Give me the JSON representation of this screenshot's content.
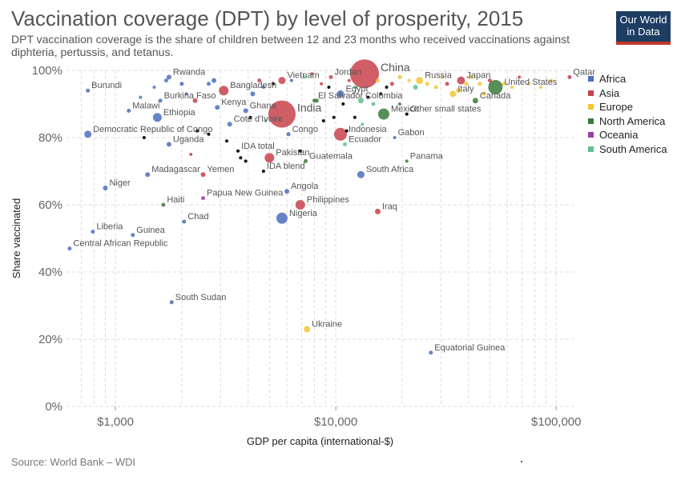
{
  "title": "Vaccination coverage (DPT) by level of prosperity, 2015",
  "subtitle": "DPT vaccination coverage is the share of children between 12 and 23 months who received vaccinations against diphteria, pertussis, and tetanus.",
  "logo": {
    "line1": "Our World",
    "line2": "in Data"
  },
  "source": "Source: World Bank – WDI",
  "colors": {
    "Africa": "#4c6fbf",
    "Asia": "#c8424b",
    "Europe": "#f4c637",
    "North America": "#3b7a3b",
    "Oceania": "#9b3fa6",
    "South America": "#5cc28f",
    "Aggregate": "#111111"
  },
  "chart_data": {
    "type": "scatter",
    "title": "Vaccination coverage (DPT) by level of prosperity, 2015",
    "xlabel": "GDP per capita (international-$)",
    "ylabel": "Share vaccinated",
    "xscale": "log",
    "xlim": [
      600,
      120000
    ],
    "ylim": [
      0,
      100
    ],
    "xticks": [
      1000,
      10000,
      100000
    ],
    "xtick_labels": [
      "$1,000",
      "$10,000",
      "$100,000"
    ],
    "yticks": [
      0,
      20,
      40,
      60,
      80,
      100
    ],
    "ytick_labels": [
      "0%",
      "20%",
      "40%",
      "60%",
      "80%",
      "100%"
    ],
    "grid": true,
    "legend_position": "right",
    "legend": [
      "Africa",
      "Asia",
      "Europe",
      "North America",
      "Oceania",
      "South America"
    ],
    "points": [
      {
        "label": "Burundi",
        "x": 750,
        "y": 94,
        "g": "Africa",
        "s": 2.5
      },
      {
        "label": "Rwanda",
        "x": 1750,
        "y": 98,
        "g": "Africa",
        "s": 3
      },
      {
        "label": "Bangladesh",
        "x": 3100,
        "y": 94,
        "g": "Asia",
        "s": 6
      },
      {
        "label": "Vietnam",
        "x": 5700,
        "y": 97,
        "g": "Asia",
        "s": 4.5
      },
      {
        "label": "Jordan",
        "x": 9500,
        "y": 98,
        "g": "Asia",
        "s": 2.5
      },
      {
        "label": "Egypt",
        "x": 10500,
        "y": 93,
        "g": "Africa",
        "s": 4.5
      },
      {
        "label": "China",
        "x": 13500,
        "y": 99,
        "g": "Asia",
        "s": 18
      },
      {
        "label": "Russia",
        "x": 24000,
        "y": 97,
        "g": "Europe",
        "s": 4.5
      },
      {
        "label": "Japan",
        "x": 37000,
        "y": 97,
        "g": "Asia",
        "s": 5
      },
      {
        "label": "United States",
        "x": 53000,
        "y": 95,
        "g": "North America",
        "s": 9
      },
      {
        "label": "Qatar",
        "x": 115000,
        "y": 98,
        "g": "Asia",
        "s": 2.5
      },
      {
        "label": "Italy",
        "x": 34000,
        "y": 93,
        "g": "Europe",
        "s": 4
      },
      {
        "label": "Canada",
        "x": 43000,
        "y": 91,
        "g": "North America",
        "s": 3.5
      },
      {
        "label": "Burkina Faso",
        "x": 1600,
        "y": 91,
        "g": "Africa",
        "s": 2.5
      },
      {
        "label": "Kenya",
        "x": 2900,
        "y": 89,
        "g": "Africa",
        "s": 3
      },
      {
        "label": "Ghana",
        "x": 3900,
        "y": 88,
        "g": "Africa",
        "s": 3
      },
      {
        "label": "India",
        "x": 5700,
        "y": 87,
        "g": "Asia",
        "s": 17
      },
      {
        "label": "El Salvador",
        "x": 8000,
        "y": 91,
        "g": "North America",
        "s": 2.5
      },
      {
        "label": "Colombia",
        "x": 13000,
        "y": 91,
        "g": "South America",
        "s": 3.5
      },
      {
        "label": "Mexico",
        "x": 16500,
        "y": 87,
        "g": "North America",
        "s": 7
      },
      {
        "label": "Other small states",
        "x": 21000,
        "y": 87,
        "g": "Aggregate",
        "s": 2
      },
      {
        "label": "Malawi",
        "x": 1150,
        "y": 88,
        "g": "Africa",
        "s": 2.5
      },
      {
        "label": "Ethiopia",
        "x": 1550,
        "y": 86,
        "g": "Africa",
        "s": 5.5
      },
      {
        "label": "Cote d'Ivoire",
        "x": 3300,
        "y": 84,
        "g": "Africa",
        "s": 3
      },
      {
        "label": "Indonesia",
        "x": 10500,
        "y": 81,
        "g": "Asia",
        "s": 8
      },
      {
        "label": "Democratic Republic of Congo",
        "x": 750,
        "y": 81,
        "g": "Africa",
        "s": 4.5
      },
      {
        "label": "Uganda",
        "x": 1750,
        "y": 78,
        "g": "Africa",
        "s": 3
      },
      {
        "label": "Congo",
        "x": 6100,
        "y": 81,
        "g": "Africa",
        "s": 2.5
      },
      {
        "label": "Ecuador",
        "x": 11000,
        "y": 78,
        "g": "South America",
        "s": 2.5
      },
      {
        "label": "Gabon",
        "x": 18500,
        "y": 80,
        "g": "Africa",
        "s": 2
      },
      {
        "label": "IDA total",
        "x": 3600,
        "y": 76,
        "g": "Aggregate",
        "s": 2
      },
      {
        "label": "Pakistan",
        "x": 5000,
        "y": 74,
        "g": "Asia",
        "s": 6
      },
      {
        "label": "Guatemala",
        "x": 7300,
        "y": 73,
        "g": "North America",
        "s": 2.5
      },
      {
        "label": "Panama",
        "x": 21000,
        "y": 73,
        "g": "North America",
        "s": 2
      },
      {
        "label": "IDA blend",
        "x": 4700,
        "y": 70,
        "g": "Aggregate",
        "s": 2
      },
      {
        "label": "Madagascar",
        "x": 1400,
        "y": 69,
        "g": "Africa",
        "s": 3
      },
      {
        "label": "Yemen",
        "x": 2500,
        "y": 69,
        "g": "Asia",
        "s": 3
      },
      {
        "label": "South Africa",
        "x": 13000,
        "y": 69,
        "g": "Africa",
        "s": 4.5
      },
      {
        "label": "Niger",
        "x": 900,
        "y": 65,
        "g": "Africa",
        "s": 3
      },
      {
        "label": "Angola",
        "x": 6000,
        "y": 64,
        "g": "Africa",
        "s": 3
      },
      {
        "label": "Papua New Guinea",
        "x": 2500,
        "y": 62,
        "g": "Oceania",
        "s": 2.5
      },
      {
        "label": "Haiti",
        "x": 1650,
        "y": 60,
        "g": "North America",
        "s": 2.5
      },
      {
        "label": "Philippines",
        "x": 6900,
        "y": 60,
        "g": "Asia",
        "s": 6
      },
      {
        "label": "Nigeria",
        "x": 5700,
        "y": 56,
        "g": "Africa",
        "s": 7
      },
      {
        "label": "Iraq",
        "x": 15500,
        "y": 58,
        "g": "Asia",
        "s": 3.5
      },
      {
        "label": "Chad",
        "x": 2050,
        "y": 55,
        "g": "Africa",
        "s": 2.5
      },
      {
        "label": "Liberia",
        "x": 790,
        "y": 52,
        "g": "Africa",
        "s": 2.5
      },
      {
        "label": "Guinea",
        "x": 1200,
        "y": 51,
        "g": "Africa",
        "s": 2.5
      },
      {
        "label": "Central African Republic",
        "x": 620,
        "y": 47,
        "g": "Africa",
        "s": 2.5
      },
      {
        "label": "South Sudan",
        "x": 1800,
        "y": 31,
        "g": "Africa",
        "s": 2.5
      },
      {
        "label": "Ukraine",
        "x": 7400,
        "y": 23,
        "g": "Europe",
        "s": 4
      },
      {
        "label": "Equatorial Guinea",
        "x": 27000,
        "y": 16,
        "g": "Africa",
        "s": 2.5
      },
      {
        "label": "",
        "x": 1300,
        "y": 92,
        "g": "Africa",
        "s": 2
      },
      {
        "label": "",
        "x": 1500,
        "y": 95,
        "g": "Africa",
        "s": 2
      },
      {
        "label": "",
        "x": 1700,
        "y": 97,
        "g": "Africa",
        "s": 2.5
      },
      {
        "label": "",
        "x": 2000,
        "y": 96,
        "g": "Africa",
        "s": 2.5
      },
      {
        "label": "",
        "x": 2300,
        "y": 91,
        "g": "Asia",
        "s": 3
      },
      {
        "label": "",
        "x": 2100,
        "y": 93,
        "g": "Africa",
        "s": 2
      },
      {
        "label": "",
        "x": 2650,
        "y": 96,
        "g": "Africa",
        "s": 2.5
      },
      {
        "label": "",
        "x": 2800,
        "y": 97,
        "g": "Africa",
        "s": 3
      },
      {
        "label": "",
        "x": 4200,
        "y": 93,
        "g": "Africa",
        "s": 3
      },
      {
        "label": "",
        "x": 4500,
        "y": 97,
        "g": "Asia",
        "s": 2.5
      },
      {
        "label": "",
        "x": 4700,
        "y": 95,
        "g": "Africa",
        "s": 2
      },
      {
        "label": "",
        "x": 5200,
        "y": 96,
        "g": "Aggregate",
        "s": 2
      },
      {
        "label": "",
        "x": 6300,
        "y": 97,
        "g": "Africa",
        "s": 2
      },
      {
        "label": "",
        "x": 7200,
        "y": 98,
        "g": "South America",
        "s": 2
      },
      {
        "label": "",
        "x": 7800,
        "y": 99,
        "g": "Asia",
        "s": 2
      },
      {
        "label": "",
        "x": 8600,
        "y": 96,
        "g": "Asia",
        "s": 2
      },
      {
        "label": "",
        "x": 9300,
        "y": 95,
        "g": "Aggregate",
        "s": 2
      },
      {
        "label": "",
        "x": 11500,
        "y": 97,
        "g": "Asia",
        "s": 2
      },
      {
        "label": "",
        "x": 12300,
        "y": 95,
        "g": "South America",
        "s": 2.5
      },
      {
        "label": "",
        "x": 15500,
        "y": 97,
        "g": "Europe",
        "s": 2.5
      },
      {
        "label": "",
        "x": 17000,
        "y": 95,
        "g": "Aggregate",
        "s": 2
      },
      {
        "label": "",
        "x": 18000,
        "y": 96,
        "g": "Asia",
        "s": 2.5
      },
      {
        "label": "",
        "x": 19500,
        "y": 98,
        "g": "Europe",
        "s": 2.5
      },
      {
        "label": "",
        "x": 21500,
        "y": 97,
        "g": "Europe",
        "s": 2
      },
      {
        "label": "",
        "x": 23000,
        "y": 95,
        "g": "South America",
        "s": 3
      },
      {
        "label": "",
        "x": 26000,
        "y": 96,
        "g": "Europe",
        "s": 2.5
      },
      {
        "label": "",
        "x": 28500,
        "y": 95,
        "g": "Europe",
        "s": 2.5
      },
      {
        "label": "",
        "x": 30500,
        "y": 98,
        "g": "Europe",
        "s": 2
      },
      {
        "label": "",
        "x": 32000,
        "y": 96,
        "g": "Asia",
        "s": 2.5
      },
      {
        "label": "",
        "x": 36000,
        "y": 94,
        "g": "Europe",
        "s": 3
      },
      {
        "label": "",
        "x": 39000,
        "y": 96,
        "g": "Europe",
        "s": 2.5
      },
      {
        "label": "",
        "x": 41000,
        "y": 98,
        "g": "Europe",
        "s": 2.5
      },
      {
        "label": "",
        "x": 45000,
        "y": 96,
        "g": "Europe",
        "s": 2.5
      },
      {
        "label": "",
        "x": 47000,
        "y": 93,
        "g": "Europe",
        "s": 2.5
      },
      {
        "label": "",
        "x": 50000,
        "y": 97,
        "g": "Asia",
        "s": 2.5
      },
      {
        "label": "",
        "x": 58000,
        "y": 96,
        "g": "Europe",
        "s": 2.5
      },
      {
        "label": "",
        "x": 63000,
        "y": 95,
        "g": "Europe",
        "s": 2
      },
      {
        "label": "",
        "x": 68000,
        "y": 98,
        "g": "Asia",
        "s": 2
      },
      {
        "label": "",
        "x": 75000,
        "y": 96,
        "g": "Europe",
        "s": 2
      },
      {
        "label": "",
        "x": 85000,
        "y": 95,
        "g": "Europe",
        "s": 2
      },
      {
        "label": "",
        "x": 95000,
        "y": 97,
        "g": "Europe",
        "s": 2
      },
      {
        "label": "",
        "x": 16000,
        "y": 93,
        "g": "Aggregate",
        "s": 2
      },
      {
        "label": "",
        "x": 14000,
        "y": 92,
        "g": "Aggregate",
        "s": 2
      },
      {
        "label": "",
        "x": 10800,
        "y": 90,
        "g": "Aggregate",
        "s": 2
      },
      {
        "label": "",
        "x": 9800,
        "y": 86,
        "g": "Aggregate",
        "s": 2
      },
      {
        "label": "",
        "x": 8800,
        "y": 85,
        "g": "Aggregate",
        "s": 2
      },
      {
        "label": "",
        "x": 12200,
        "y": 86,
        "g": "Aggregate",
        "s": 2
      },
      {
        "label": "",
        "x": 2650,
        "y": 81,
        "g": "Aggregate",
        "s": 2
      },
      {
        "label": "",
        "x": 3200,
        "y": 79,
        "g": "Aggregate",
        "s": 2
      },
      {
        "label": "",
        "x": 3700,
        "y": 74,
        "g": "Aggregate",
        "s": 2
      },
      {
        "label": "",
        "x": 3900,
        "y": 73,
        "g": "Aggregate",
        "s": 2
      },
      {
        "label": "",
        "x": 6900,
        "y": 76,
        "g": "Aggregate",
        "s": 2
      },
      {
        "label": "",
        "x": 2350,
        "y": 82,
        "g": "Aggregate",
        "s": 2
      },
      {
        "label": "",
        "x": 1350,
        "y": 80,
        "g": "Aggregate",
        "s": 2
      },
      {
        "label": "",
        "x": 2200,
        "y": 75,
        "g": "Asia",
        "s": 2
      },
      {
        "label": "",
        "x": 4800,
        "y": 85,
        "g": "South America",
        "s": 2
      },
      {
        "label": "",
        "x": 4100,
        "y": 86,
        "g": "Aggregate",
        "s": 2
      },
      {
        "label": "",
        "x": 8200,
        "y": 91,
        "g": "North America",
        "s": 2.5
      },
      {
        "label": "",
        "x": 14800,
        "y": 90,
        "g": "South America",
        "s": 2.5
      },
      {
        "label": "",
        "x": 19500,
        "y": 90,
        "g": "North America",
        "s": 2
      },
      {
        "label": "",
        "x": 13200,
        "y": 84,
        "g": "South America",
        "s": 2
      },
      {
        "label": "",
        "x": 11200,
        "y": 82,
        "g": "Aggregate",
        "s": 2
      }
    ]
  }
}
